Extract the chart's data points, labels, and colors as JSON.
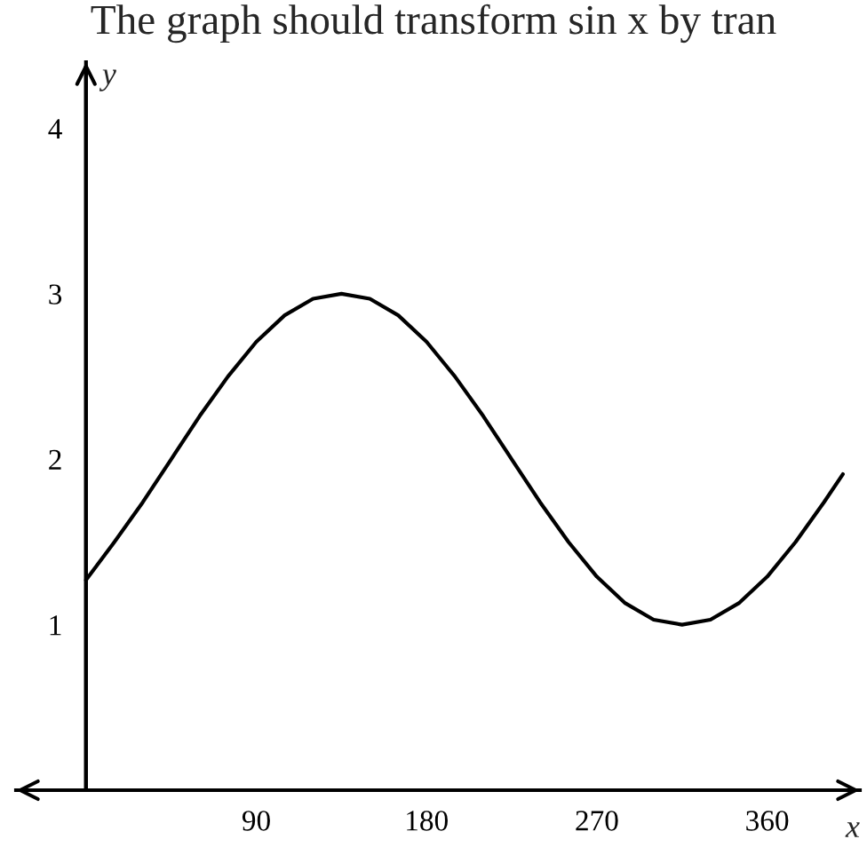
{
  "chart_data": {
    "type": "line",
    "title": "The graph should transform sin x by tran",
    "xlabel": "x",
    "ylabel": "y",
    "x": [
      0,
      15,
      30,
      45,
      60,
      75,
      90,
      105,
      120,
      135,
      150,
      165,
      180,
      195,
      210,
      225,
      240,
      255,
      270,
      285,
      300,
      315,
      330,
      345,
      360,
      375,
      390,
      400
    ],
    "values": [
      1.27,
      1.5,
      1.74,
      2.0,
      2.26,
      2.5,
      2.71,
      2.87,
      2.97,
      3.0,
      2.97,
      2.87,
      2.71,
      2.5,
      2.26,
      2.0,
      1.74,
      1.5,
      1.29,
      1.13,
      1.03,
      1.0,
      1.03,
      1.13,
      1.29,
      1.5,
      1.74,
      1.91
    ],
    "color": "#000000",
    "xlim": [
      -37,
      409
    ],
    "ylim": [
      0,
      4.4
    ],
    "xticks": [
      90,
      180,
      270,
      360
    ],
    "yticks": [
      1,
      2,
      3,
      4
    ],
    "grid": false
  }
}
